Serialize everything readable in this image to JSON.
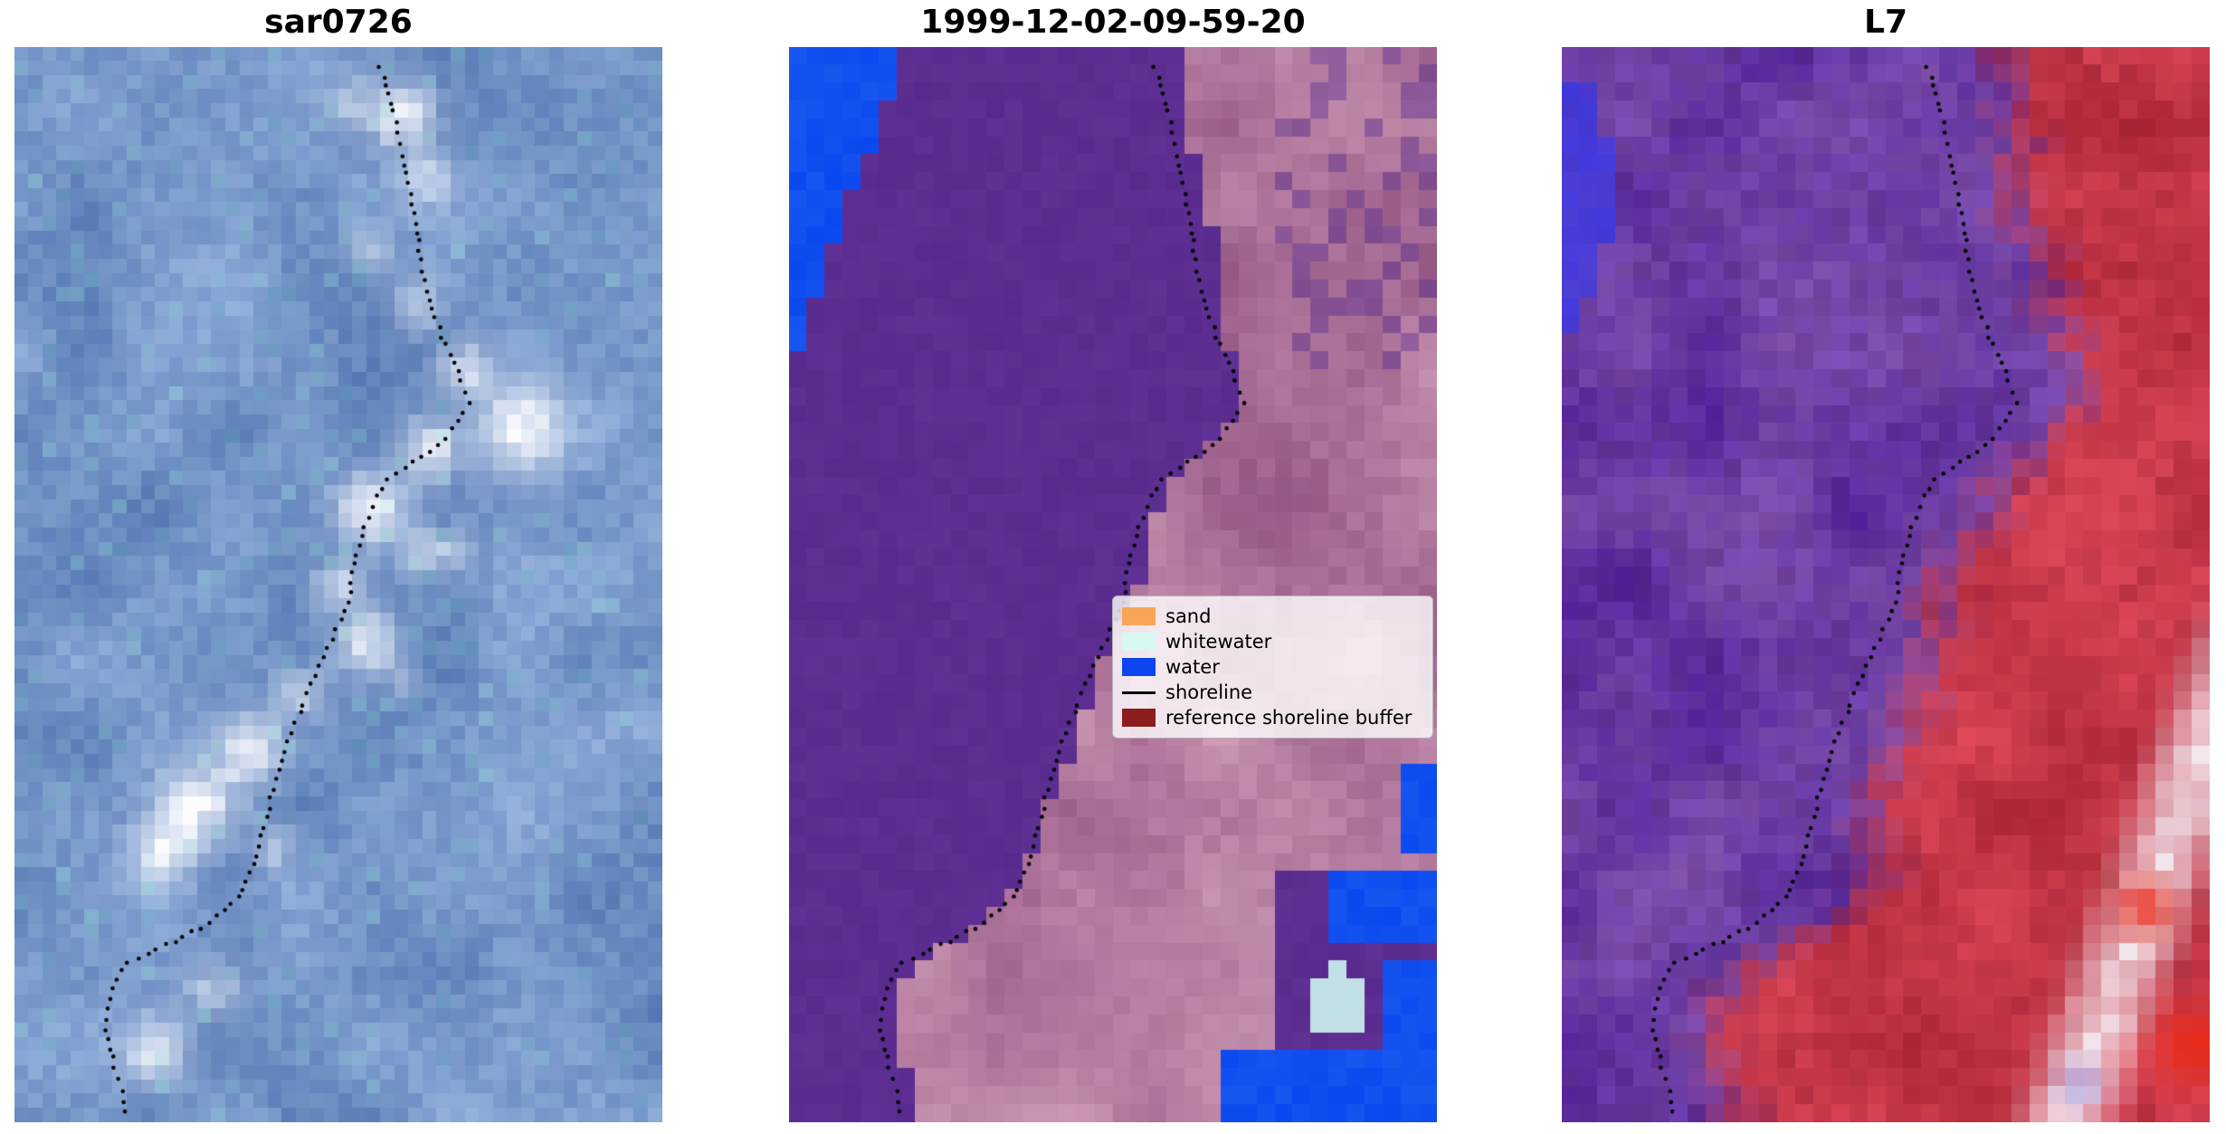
{
  "figure": {
    "background": "#ffffff",
    "panels": [
      {
        "id": "sar0726",
        "title": "sar0726",
        "type": "sar",
        "palette": {
          "base_dark": "#6082b9",
          "base_light": "#8caad7",
          "highlight": "#fcfcff"
        }
      },
      {
        "id": "classified",
        "title": "1999-12-02-09-59-20",
        "type": "classified",
        "palette": {
          "land_purple": "#5c2e91",
          "pink_dark": "#965886",
          "pink_light": "#ca96b2",
          "water_blue": "#1250f0",
          "whitewater": "#cdf4ef"
        }
      },
      {
        "id": "l7",
        "title": "L7",
        "type": "l7",
        "palette": {
          "purple": "#683aa2",
          "red": "#c53748",
          "bright_red": "#eb2d1c",
          "white": "#f6f2f8",
          "water_blue": "#3a3ae8"
        }
      }
    ],
    "legend": {
      "attached_to_panel": "1999-12-02-09-59-20",
      "items": [
        {
          "label": "sand",
          "swatch": "patch",
          "color": "#f9a558"
        },
        {
          "label": "whitewater",
          "swatch": "patch",
          "color": "#d8f8f3"
        },
        {
          "label": "water",
          "swatch": "patch",
          "color": "#0d45f0"
        },
        {
          "label": "shoreline",
          "swatch": "line",
          "color": "#000000"
        },
        {
          "label": "reference shoreline buffer",
          "swatch": "patch",
          "color": "#8d1d1d"
        }
      ]
    },
    "shoreline_normalized": [
      [
        0.565,
        0.02
      ],
      [
        0.585,
        0.06
      ],
      [
        0.6,
        0.1
      ],
      [
        0.615,
        0.145
      ],
      [
        0.625,
        0.19
      ],
      [
        0.64,
        0.235
      ],
      [
        0.66,
        0.27
      ],
      [
        0.685,
        0.3
      ],
      [
        0.7,
        0.33
      ],
      [
        0.665,
        0.365
      ],
      [
        0.615,
        0.385
      ],
      [
        0.565,
        0.41
      ],
      [
        0.54,
        0.445
      ],
      [
        0.525,
        0.48
      ],
      [
        0.515,
        0.515
      ],
      [
        0.49,
        0.55
      ],
      [
        0.465,
        0.585
      ],
      [
        0.44,
        0.62
      ],
      [
        0.415,
        0.655
      ],
      [
        0.4,
        0.69
      ],
      [
        0.385,
        0.725
      ],
      [
        0.37,
        0.76
      ],
      [
        0.345,
        0.79
      ],
      [
        0.3,
        0.815
      ],
      [
        0.235,
        0.835
      ],
      [
        0.175,
        0.85
      ],
      [
        0.15,
        0.875
      ],
      [
        0.14,
        0.905
      ],
      [
        0.15,
        0.94
      ],
      [
        0.165,
        0.97
      ],
      [
        0.175,
        1.0
      ]
    ]
  },
  "chart_data": {
    "type": "heatmap",
    "title": "",
    "panel_titles": [
      "sar0726",
      "1999-12-02-09-59-20",
      "L7"
    ],
    "legend_entries": [
      "sand",
      "whitewater",
      "water",
      "shoreline",
      "reference shoreline buffer"
    ],
    "legend_colors": [
      "#f9a558",
      "#d8f8f3",
      "#0d45f0",
      "#000000",
      "#8d1d1d"
    ],
    "series": [
      {
        "name": "shoreline",
        "style": "black dotted overlay, drawn identically on all three co-registered image tiles",
        "points_normalized_xy": [
          [
            0.565,
            0.02
          ],
          [
            0.585,
            0.06
          ],
          [
            0.6,
            0.1
          ],
          [
            0.615,
            0.145
          ],
          [
            0.625,
            0.19
          ],
          [
            0.64,
            0.235
          ],
          [
            0.66,
            0.27
          ],
          [
            0.685,
            0.3
          ],
          [
            0.7,
            0.33
          ],
          [
            0.665,
            0.365
          ],
          [
            0.615,
            0.385
          ],
          [
            0.565,
            0.41
          ],
          [
            0.54,
            0.445
          ],
          [
            0.525,
            0.48
          ],
          [
            0.515,
            0.515
          ],
          [
            0.49,
            0.55
          ],
          [
            0.465,
            0.585
          ],
          [
            0.44,
            0.62
          ],
          [
            0.415,
            0.655
          ],
          [
            0.4,
            0.69
          ],
          [
            0.385,
            0.725
          ],
          [
            0.37,
            0.76
          ],
          [
            0.345,
            0.79
          ],
          [
            0.3,
            0.815
          ],
          [
            0.235,
            0.835
          ],
          [
            0.175,
            0.85
          ],
          [
            0.15,
            0.875
          ],
          [
            0.14,
            0.905
          ],
          [
            0.15,
            0.94
          ],
          [
            0.165,
            0.97
          ],
          [
            0.175,
            1.0
          ]
        ]
      }
    ]
  }
}
